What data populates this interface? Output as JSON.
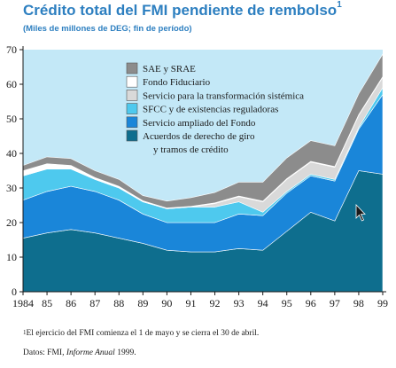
{
  "header": {
    "title": "Crédito total del FMI pendiente de rembolso",
    "title_note_marker": "1",
    "subtitle": "(Miles de millones de DEG; fin de período)"
  },
  "footer": {
    "footnote_marker": "1",
    "footnote": "El ejercicio del FMI comienza el 1 de mayo y se cierra el 30 de abril.",
    "source_prefix": "Datos: FMI, ",
    "source_italic": "Informe Anual",
    "source_suffix": " 1999."
  },
  "chart_data": {
    "type": "area",
    "stacked": true,
    "title": "Crédito total del FMI pendiente de rembolso",
    "subtitle": "(Miles de millones de DEG; fin de período)",
    "x": [
      1984,
      1985,
      1986,
      1987,
      1988,
      1989,
      1990,
      1991,
      1992,
      1993,
      1994,
      1995,
      1996,
      1997,
      1998,
      1999
    ],
    "x_tick_labels": [
      "1984",
      "85",
      "86",
      "87",
      "88",
      "89",
      "90",
      "91",
      "92",
      "93",
      "94",
      "95",
      "96",
      "97",
      "98",
      "99"
    ],
    "ylim": [
      0,
      70
    ],
    "y_ticks": [
      0,
      10,
      20,
      30,
      40,
      50,
      60,
      70
    ],
    "grid": false,
    "legend_position": "top-center",
    "series": [
      {
        "name": "Acuerdos de derecho de giro y tramos de crédito",
        "legend_lines": [
          "Acuerdos de derecho de giro",
          "y tramos de crédito"
        ],
        "color": "#0e6e8e",
        "values": [
          15.5,
          17.0,
          18.0,
          17.0,
          15.5,
          14.0,
          12.0,
          11.5,
          11.5,
          12.5,
          12.0,
          17.5,
          23.0,
          20.5,
          35.0,
          34.0
        ]
      },
      {
        "name": "Servicio ampliado del Fondo",
        "legend_lines": [
          "Servicio ampliado del Fondo"
        ],
        "color": "#1a86d9",
        "values": [
          11.0,
          12.0,
          12.5,
          12.0,
          11.0,
          8.5,
          8.0,
          8.5,
          8.5,
          10.0,
          10.0,
          11.0,
          10.5,
          11.5,
          12.0,
          23.0
        ]
      },
      {
        "name": "SFCC y de existencias reguladoras",
        "legend_lines": [
          "SFCC y de existencias reguladoras"
        ],
        "color": "#4ec9ee",
        "values": [
          7.0,
          6.5,
          5.0,
          3.5,
          3.5,
          3.5,
          4.0,
          4.5,
          4.5,
          3.5,
          1.0,
          0.5,
          0.5,
          0.5,
          0.5,
          2.0
        ]
      },
      {
        "name": "Servicio para la transformación sistémica",
        "legend_lines": [
          "Servicio para la transformación sistémica"
        ],
        "color": "#d9d9d9",
        "values": [
          0.0,
          0.0,
          0.0,
          0.0,
          0.0,
          0.0,
          0.0,
          0.0,
          1.0,
          1.5,
          3.0,
          3.5,
          3.5,
          3.5,
          3.5,
          3.0
        ]
      },
      {
        "name": "Fondo Fiduciario",
        "legend_lines": [
          "Fondo Fiduciario"
        ],
        "color": "#ffffff",
        "values": [
          1.5,
          1.5,
          1.0,
          0.5,
          0.5,
          0.3,
          0.2,
          0.2,
          0.2,
          0.2,
          0.2,
          0.2,
          0.2,
          0.2,
          0.2,
          0.2
        ]
      },
      {
        "name": "SAE y SRAE",
        "legend_lines": [
          "SAE y SRAE"
        ],
        "color": "#8c8c8c",
        "values": [
          1.5,
          2.0,
          2.0,
          2.0,
          2.0,
          1.5,
          2.0,
          2.5,
          3.0,
          4.0,
          5.5,
          6.0,
          6.0,
          6.0,
          6.0,
          6.5
        ]
      }
    ],
    "plot_background": "#c3e8f7",
    "axis_color": "#1a1a1a"
  }
}
